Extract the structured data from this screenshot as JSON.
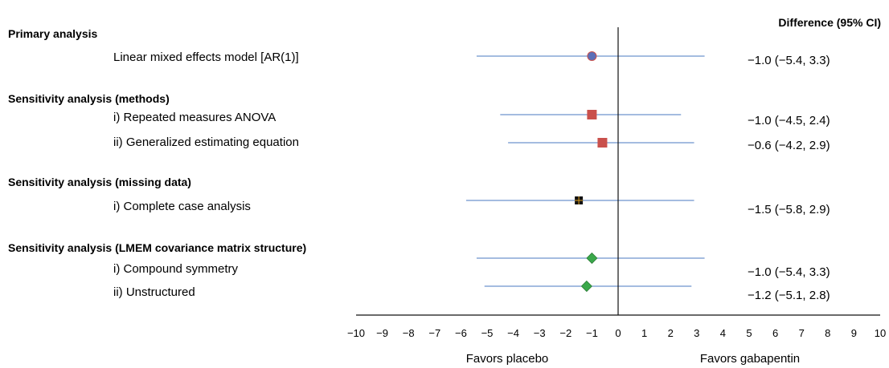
{
  "chart_data": {
    "type": "forest",
    "column_header": "Difference (95% CI)",
    "xlim": [
      -10,
      10
    ],
    "x_ticks": [
      "−10",
      "−9",
      "−8",
      "−7",
      "−6",
      "−5",
      "−4",
      "−3",
      "−2",
      "−1",
      "0",
      "1",
      "2",
      "3",
      "4",
      "5",
      "6",
      "7",
      "8",
      "9",
      "10"
    ],
    "x_tick_values": [
      -10,
      -9,
      -8,
      -7,
      -6,
      -5,
      -4,
      -3,
      -2,
      -1,
      0,
      1,
      2,
      3,
      4,
      5,
      6,
      7,
      8,
      9,
      10
    ],
    "reference_line": 0,
    "left_caption": "Favors placebo",
    "right_caption": "Favors gabapentin",
    "groups": [
      {
        "header": "Primary analysis",
        "rows": [
          {
            "label": "Linear mixed effects model [AR(1)]",
            "estimate": -1.0,
            "lower": -5.4,
            "upper": 3.3,
            "text": "−1.0 (−5.4, 3.3)",
            "marker": "circle",
            "color": "#5b6fb8"
          }
        ]
      },
      {
        "header": "Sensitivity analysis (methods)",
        "rows": [
          {
            "label": "i) Repeated measures ANOVA",
            "estimate": -1.0,
            "lower": -4.5,
            "upper": 2.4,
            "text": "−1.0 (−4.5, 2.4)",
            "marker": "square",
            "color": "#c9504c"
          },
          {
            "label": "ii) Generalized estimating equation",
            "estimate": -0.6,
            "lower": -4.2,
            "upper": 2.9,
            "text": "−0.6 (−4.2, 2.9)",
            "marker": "square",
            "color": "#c9504c"
          }
        ]
      },
      {
        "header": "Sensitivity analysis (missing data)",
        "rows": [
          {
            "label": "i) Complete case analysis",
            "estimate": -1.5,
            "lower": -5.8,
            "upper": 2.9,
            "text": "−1.5 (−5.8, 2.9)",
            "marker": "cross-square",
            "color": "#111111"
          }
        ]
      },
      {
        "header": "Sensitivity analysis (LMEM covariance matrix structure)",
        "rows": [
          {
            "label": "i) Compound symmetry",
            "estimate": -1.0,
            "lower": -5.4,
            "upper": 3.3,
            "text": "−1.0 (−5.4, 3.3)",
            "marker": "diamond",
            "color": "#3aa84a"
          },
          {
            "label": "ii) Unstructured",
            "estimate": -1.2,
            "lower": -5.1,
            "upper": 2.8,
            "text": "−1.2 (−5.1, 2.8)",
            "marker": "diamond",
            "color": "#3aa84a"
          }
        ]
      }
    ],
    "ci_line_color": "#4a78c2",
    "axis_color": "#111111"
  }
}
